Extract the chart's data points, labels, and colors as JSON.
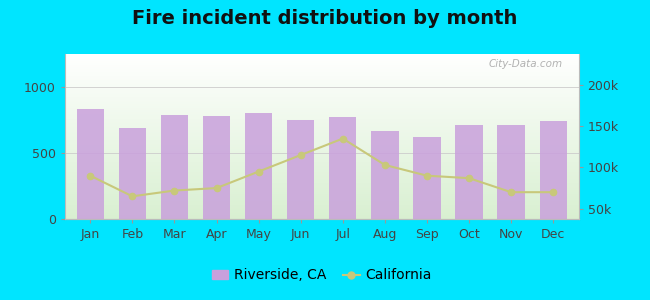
{
  "title": "Fire incident distribution by month",
  "months": [
    "Jan",
    "Feb",
    "Mar",
    "Apr",
    "May",
    "Jun",
    "Jul",
    "Aug",
    "Sep",
    "Oct",
    "Nov",
    "Dec"
  ],
  "riverside_values": [
    830,
    690,
    790,
    780,
    800,
    750,
    770,
    665,
    625,
    715,
    715,
    740
  ],
  "california_values": [
    90000,
    65000,
    72000,
    75000,
    95000,
    115000,
    135000,
    103000,
    90000,
    87000,
    70000,
    70000
  ],
  "bar_color": "#c9a0dc",
  "line_color": "#c8c87a",
  "marker_color": "#c8c87a",
  "bg_outer": "#00e5ff",
  "left_ylim": [
    0,
    1250
  ],
  "left_yticks": [
    0,
    500,
    1000
  ],
  "right_ylim": [
    37500,
    237500
  ],
  "right_yticks": [
    50000,
    100000,
    150000,
    200000
  ],
  "title_fontsize": 14,
  "tick_fontsize": 9,
  "legend_fontsize": 10,
  "watermark": "City-Data.com"
}
